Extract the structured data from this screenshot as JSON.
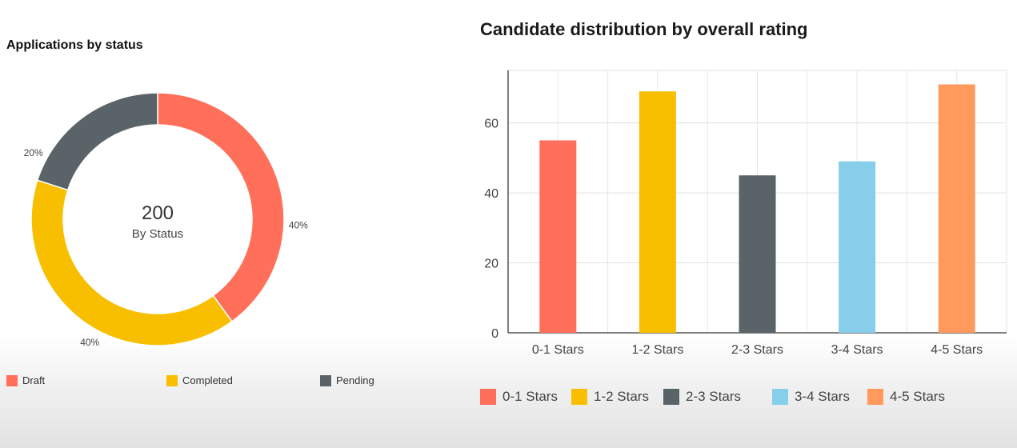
{
  "chart_data": [
    {
      "type": "pie",
      "title": "Applications by status",
      "center_value": "200",
      "center_label": "By Status",
      "slices": [
        {
          "name": "Draft",
          "value": 40,
          "label": "40%",
          "color": "#ff6f59"
        },
        {
          "name": "Completed",
          "value": 40,
          "label": "40%",
          "color": "#f7bf00"
        },
        {
          "name": "Pending",
          "value": 20,
          "label": "20%",
          "color": "#5a6468"
        }
      ],
      "legend_position": "bottom"
    },
    {
      "type": "bar",
      "title": "Candidate distribution by overall rating",
      "categories": [
        "0-1 Stars",
        "1-2 Stars",
        "2-3 Stars",
        "3-4 Stars",
        "4-5 Stars"
      ],
      "values": [
        55,
        69,
        45,
        49,
        71
      ],
      "colors": [
        "#ff6f59",
        "#f7bf00",
        "#5a6468",
        "#87ceeb",
        "#ff9a5c"
      ],
      "ylim": [
        0,
        75
      ],
      "yticks": [
        "0",
        "20",
        "40",
        "60"
      ],
      "grid": true,
      "legend_position": "bottom"
    }
  ]
}
